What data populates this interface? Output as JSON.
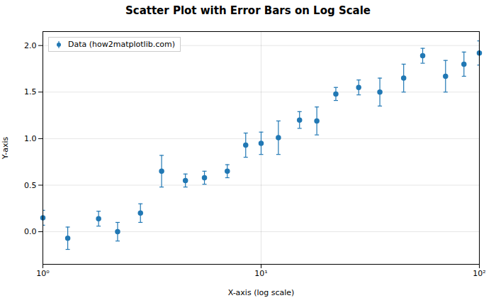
{
  "chart_data": {
    "type": "scatter",
    "title": "Scatter Plot with Error Bars on Log Scale",
    "xlabel": "X-axis (log scale)",
    "ylabel": "Y-axis",
    "x": [
      1,
      1.3,
      1.8,
      2.2,
      2.8,
      3.5,
      4.5,
      5.5,
      7.0,
      8.5,
      10,
      12,
      15,
      18,
      22,
      28,
      35,
      45,
      55,
      70,
      85,
      100
    ],
    "series": [
      {
        "name": "Data (how2matplotlib.com)",
        "color": "#2178b4",
        "marker": "circle",
        "values": [
          0.15,
          -0.07,
          0.14,
          0.0,
          0.2,
          0.65,
          0.55,
          0.58,
          0.65,
          0.93,
          0.95,
          1.01,
          1.2,
          1.19,
          1.48,
          1.55,
          1.5,
          1.65,
          1.89,
          1.67,
          1.8,
          1.92
        ],
        "yerr": [
          0.08,
          0.12,
          0.08,
          0.1,
          0.1,
          0.17,
          0.07,
          0.07,
          0.07,
          0.13,
          0.12,
          0.18,
          0.09,
          0.15,
          0.07,
          0.08,
          0.15,
          0.15,
          0.08,
          0.17,
          0.13,
          0.13
        ]
      }
    ],
    "xlim": [
      1,
      100
    ],
    "xticks": [
      {
        "value": 1,
        "label": "10⁰"
      },
      {
        "value": 10,
        "label": "10¹"
      },
      {
        "value": 100,
        "label": "10²"
      }
    ],
    "ylim": [
      -0.35,
      2.15
    ],
    "yticks": [
      {
        "value": 0,
        "label": "0.0"
      },
      {
        "value": 0.5,
        "label": "0.5"
      },
      {
        "value": 1,
        "label": "1.0"
      },
      {
        "value": 1.5,
        "label": "1.5"
      },
      {
        "value": 2,
        "label": "2.0"
      }
    ],
    "log": "x",
    "grid": true,
    "legend": "upper left"
  }
}
